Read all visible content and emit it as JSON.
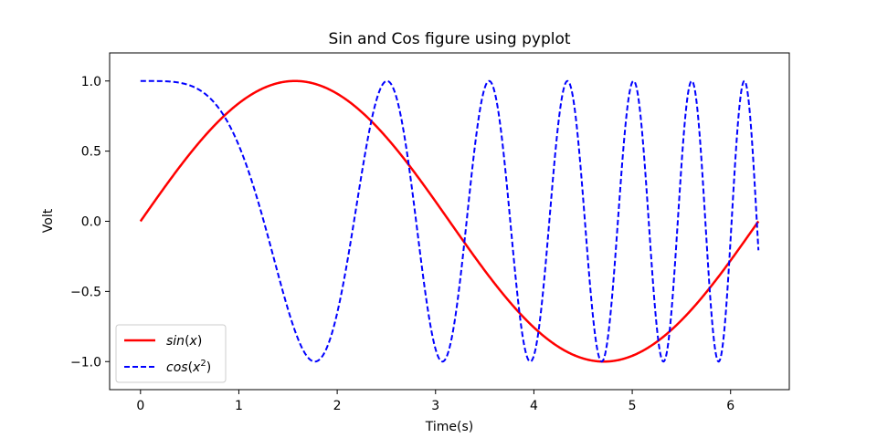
{
  "chart_data": {
    "type": "line",
    "title": "Sin and Cos figure using pyplot",
    "xlabel": "Time(s)",
    "ylabel": "Volt",
    "xlim": [
      -0.314,
      6.597
    ],
    "ylim": [
      -1.2,
      1.2
    ],
    "xticks": [
      "0",
      "1",
      "2",
      "3",
      "4",
      "5",
      "6"
    ],
    "yticks": [
      "−1.0",
      "−0.5",
      "0.0",
      "0.5",
      "1.0"
    ],
    "grid": false,
    "legend_position": "lower left",
    "series": [
      {
        "name": "sin(x)",
        "function": "sin(x)",
        "color": "#ff0000",
        "style": "solid",
        "x_range": [
          0,
          6.2832
        ],
        "samples": [
          [
            0,
            0
          ],
          [
            0.785,
            0.707
          ],
          [
            1.571,
            1.0
          ],
          [
            2.356,
            0.707
          ],
          [
            3.142,
            0.0
          ],
          [
            3.927,
            -0.707
          ],
          [
            4.712,
            -1.0
          ],
          [
            5.498,
            -0.707
          ],
          [
            6.283,
            0.0
          ]
        ]
      },
      {
        "name": "cos(x²)",
        "function": "cos(x^2)",
        "color": "#0000ff",
        "style": "dashed",
        "x_range": [
          0,
          6.2832
        ],
        "samples": [
          [
            0,
            1.0
          ],
          [
            1.0,
            0.54
          ],
          [
            1.772,
            -1.0
          ],
          [
            2.507,
            1.0
          ],
          [
            3.07,
            -1.0
          ],
          [
            3.545,
            1.0
          ],
          [
            4.342,
            1.0
          ],
          [
            5.013,
            1.0
          ],
          [
            5.605,
            1.0
          ],
          [
            6.14,
            1.0
          ],
          [
            6.283,
            -0.199
          ]
        ]
      }
    ]
  }
}
